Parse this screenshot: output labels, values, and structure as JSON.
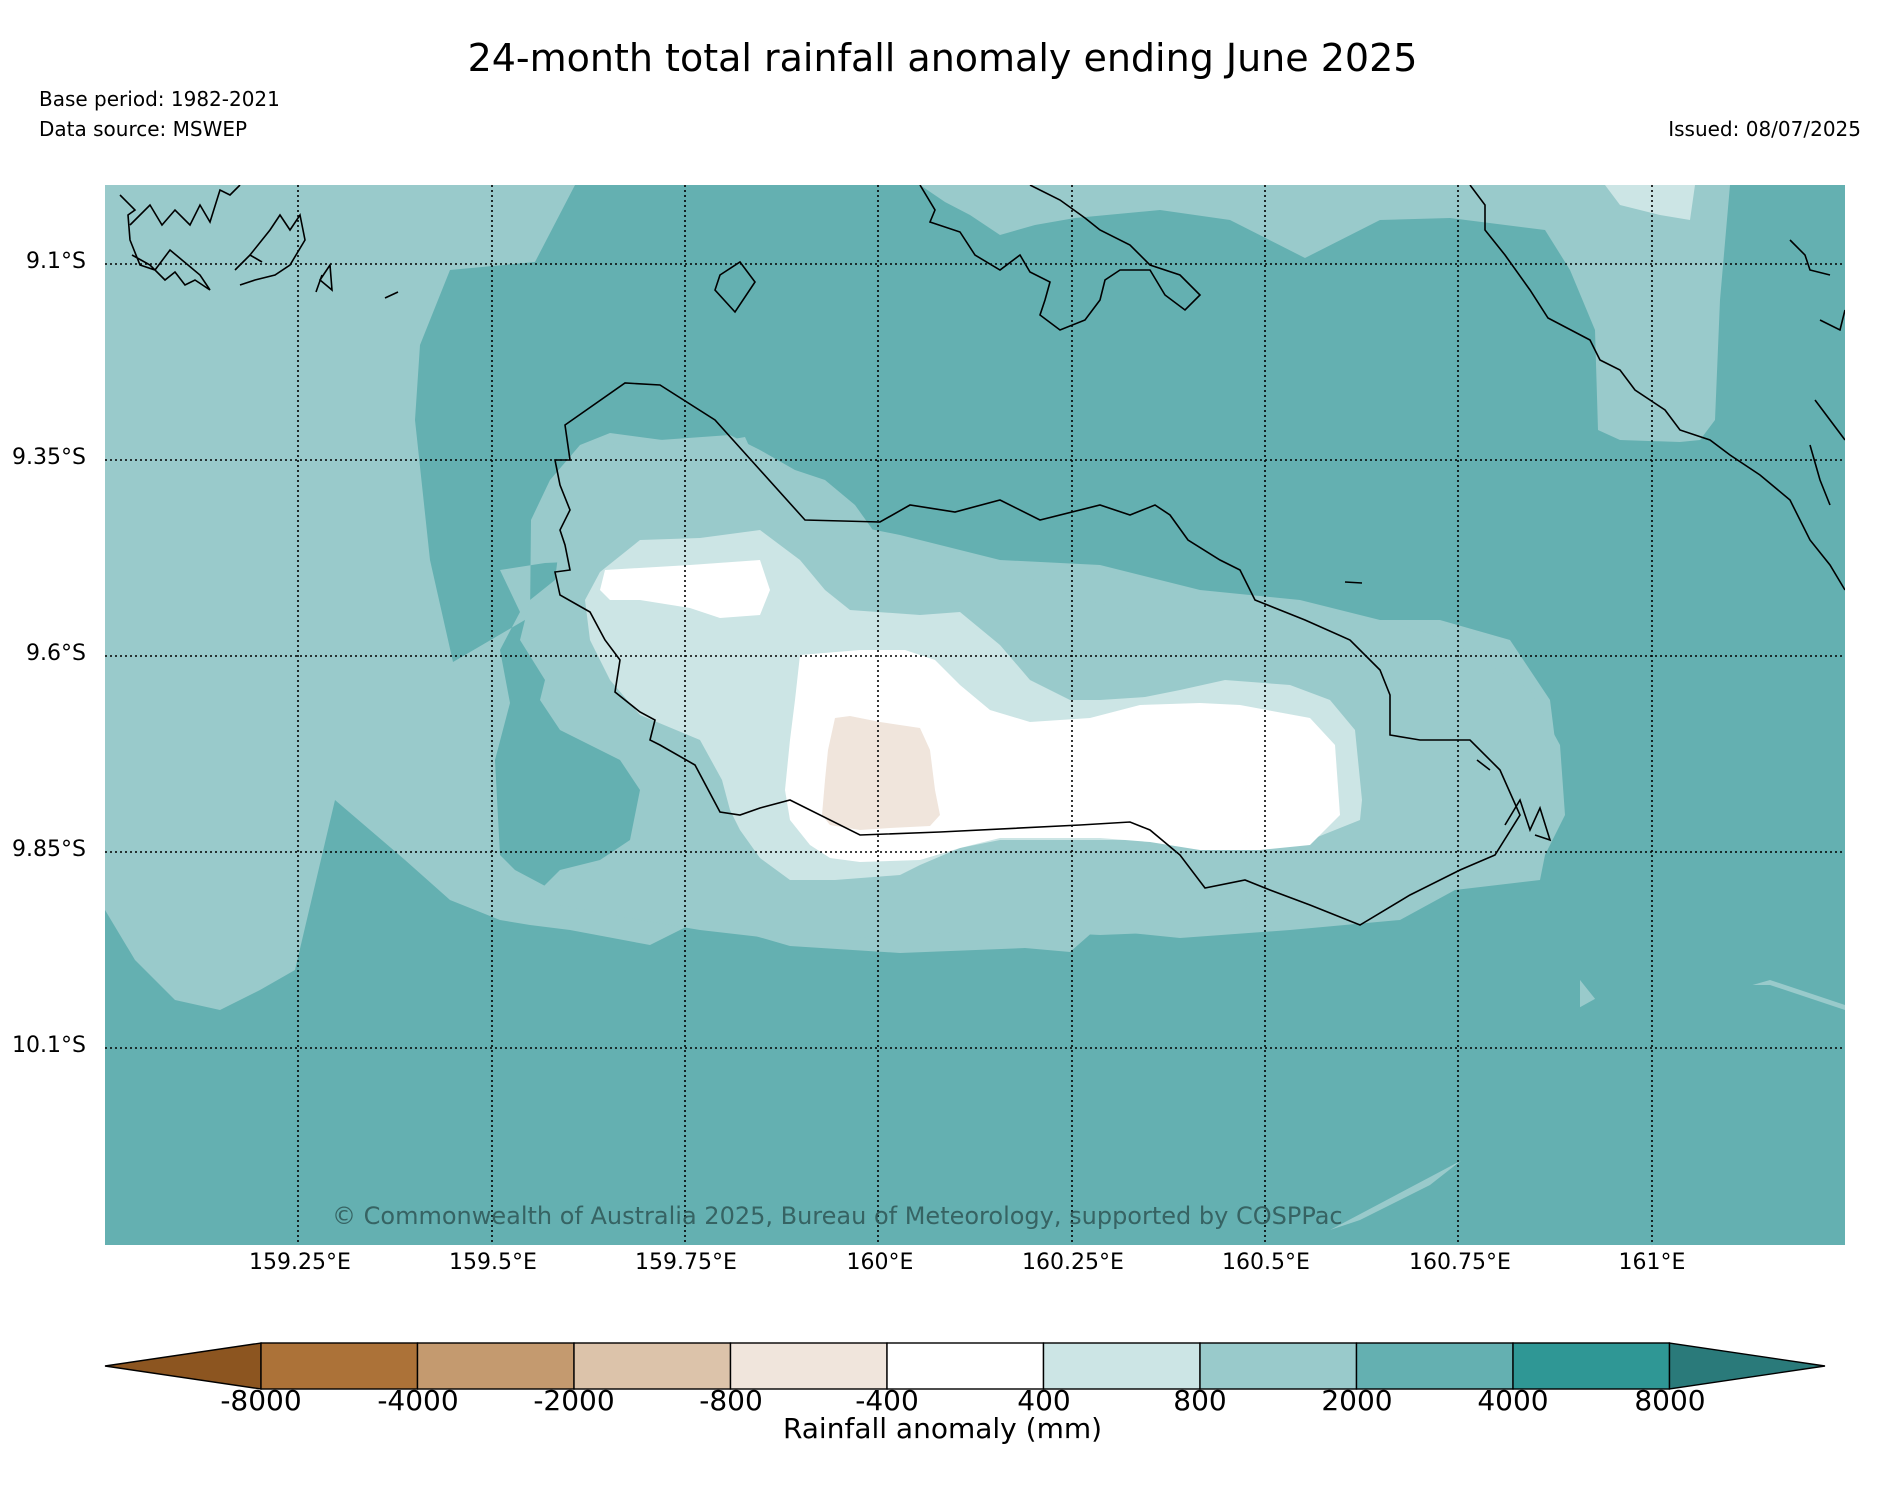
{
  "title": "24-month total rainfall anomaly ending June 2025",
  "base_period": "Base period: 1982-2021",
  "data_source": "Data source: MSWEP",
  "issued": "Issued: 08/07/2025",
  "copyright": "© Commonwealth of Australia 2025, Bureau of Meteorology, supported by COSPPac",
  "latitudes": [
    "9.1°S",
    "9.35°S",
    "9.6°S",
    "9.85°S",
    "10.1°S"
  ],
  "longitudes": [
    "159.25°E",
    "159.5°E",
    "159.75°E",
    "160°E",
    "160.25°E",
    "160.5°E",
    "160.75°E",
    "161°E"
  ],
  "colorbar": {
    "title": "Rainfall anomaly (mm)",
    "tick_labels": [
      "-8000",
      "-4000",
      "-2000",
      "-800",
      "-400",
      "400",
      "800",
      "2000",
      "4000",
      "8000"
    ],
    "colors": [
      "#8c5520",
      "#ac7238",
      "#c49a6f",
      "#dcc3aa",
      "#f0e5dc",
      "#ffffff",
      "#cce5e5",
      "#99cacb",
      "#64b0b1",
      "#2f9795",
      "#2a7a7a"
    ]
  },
  "map_colors": {
    "band_800_2000": "#99cacb",
    "band_2000_4000": "#64b0b1",
    "band_400_800": "#cce5e5",
    "band_m400_400": "#ffffff",
    "band_m800_m400": "#f0e5dc"
  }
}
